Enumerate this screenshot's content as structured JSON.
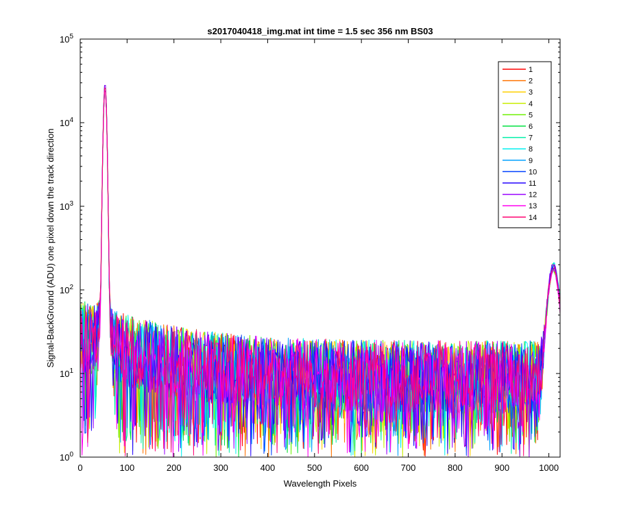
{
  "chart_data": {
    "type": "line",
    "title": "s2017040418_img.mat int time = 1.5 sec  356 nm BS03",
    "xlabel": "Wavelength Pixels",
    "ylabel": "Signal-BackGround (ADU) one pixel down the track direction",
    "xlim": [
      0,
      1024
    ],
    "ylim": [
      1,
      100000
    ],
    "yscale": "log",
    "grid": false,
    "legend_position": "top-right",
    "x_ticks": [
      "0",
      "100",
      "200",
      "300",
      "400",
      "500",
      "600",
      "700",
      "800",
      "900",
      "1000"
    ],
    "y_ticks": [
      {
        "base": "10",
        "exp": "0"
      },
      {
        "base": "10",
        "exp": "1"
      },
      {
        "base": "10",
        "exp": "2"
      },
      {
        "base": "10",
        "exp": "3"
      },
      {
        "base": "10",
        "exp": "4"
      },
      {
        "base": "10",
        "exp": "5"
      }
    ],
    "series": [
      {
        "name": "1",
        "color": "#ff0000"
      },
      {
        "name": "2",
        "color": "#ff7300"
      },
      {
        "name": "3",
        "color": "#ffd000"
      },
      {
        "name": "4",
        "color": "#c8ee00"
      },
      {
        "name": "5",
        "color": "#6cf000"
      },
      {
        "name": "6",
        "color": "#00e040"
      },
      {
        "name": "7",
        "color": "#00f0a8"
      },
      {
        "name": "8",
        "color": "#00f0f0"
      },
      {
        "name": "9",
        "color": "#00a0ff"
      },
      {
        "name": "10",
        "color": "#0040ff"
      },
      {
        "name": "11",
        "color": "#2200ff"
      },
      {
        "name": "12",
        "color": "#9900ff"
      },
      {
        "name": "13",
        "color": "#ff00f0"
      },
      {
        "name": "14",
        "color": "#ff0070"
      }
    ],
    "features": [
      {
        "label": "peak",
        "x": 53,
        "y": 30000
      },
      {
        "label": "edge",
        "x": 1010,
        "y": 160
      },
      {
        "label": "noise_level",
        "y_min": 1,
        "y_max": 40
      }
    ]
  }
}
